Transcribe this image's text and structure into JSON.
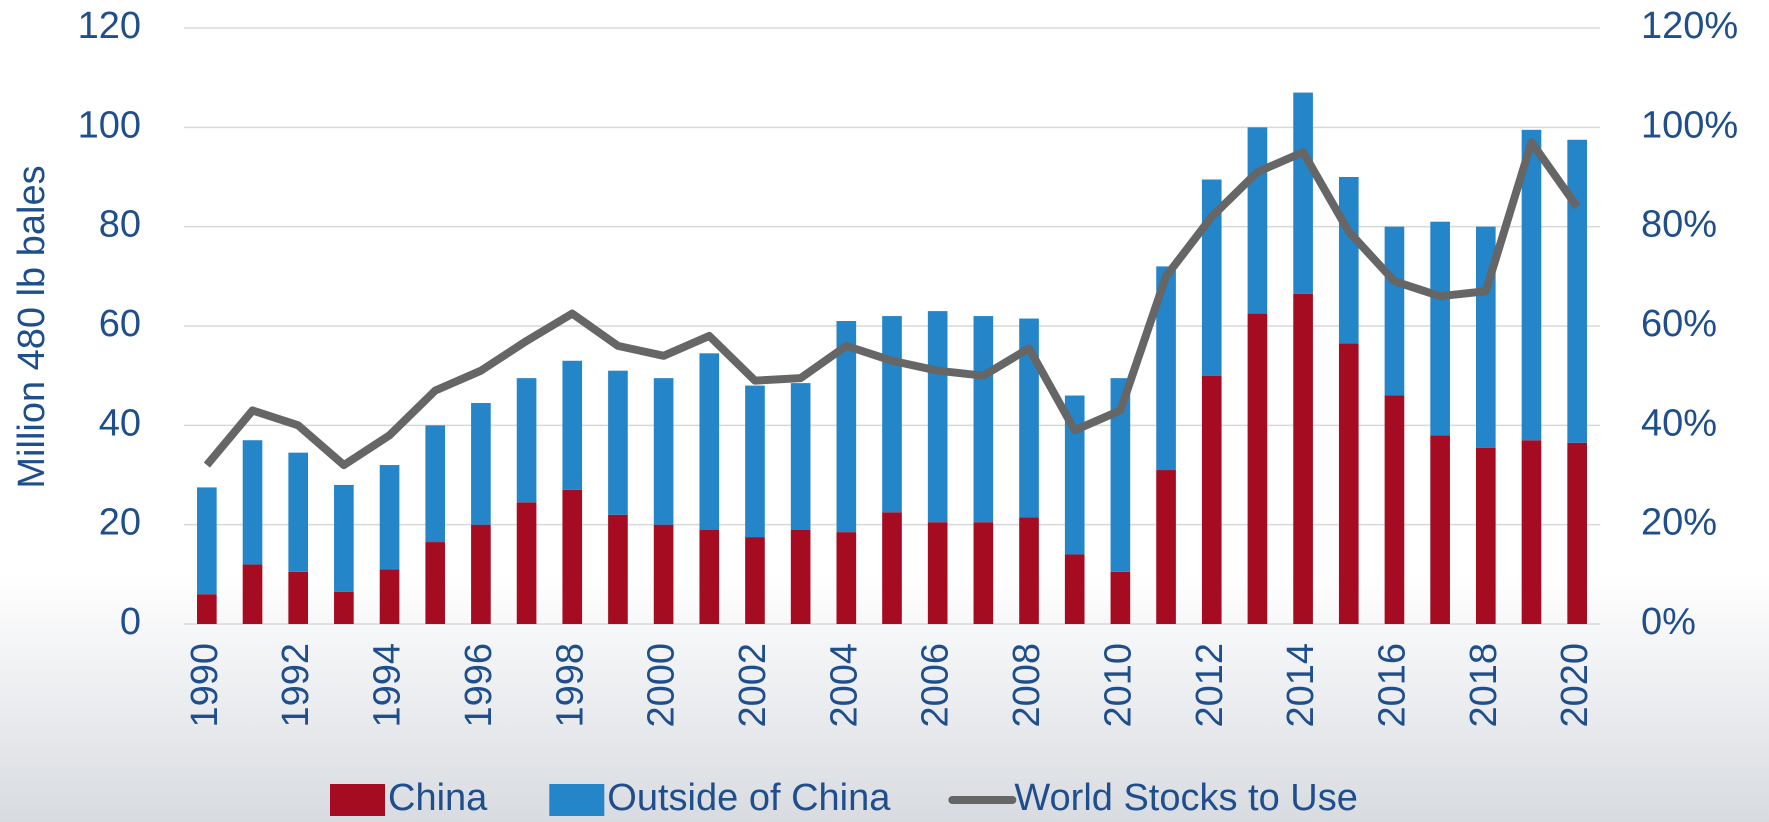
{
  "chart_data": {
    "type": "bar",
    "stacked": true,
    "y_label": "Million 480 lb bales",
    "categories": [
      "1990",
      null,
      "1992",
      null,
      "1994",
      null,
      "1996",
      null,
      "1998",
      null,
      "2000",
      null,
      "2002",
      null,
      "2004",
      null,
      "2006",
      null,
      "2008",
      null,
      "2010",
      null,
      "2012",
      null,
      "2014",
      null,
      "2016",
      null,
      "2018",
      null,
      "2020"
    ],
    "series": [
      {
        "name": "China",
        "color": "#a50b21",
        "values": [
          6,
          12,
          10.5,
          6.5,
          11,
          16.5,
          20,
          24.5,
          27,
          22,
          20,
          19,
          17.5,
          19,
          18.5,
          22.5,
          20.5,
          20.5,
          21.5,
          14,
          10.5,
          31,
          50,
          62.5,
          66.5,
          56.5,
          46,
          38,
          35.5,
          37,
          36.5
        ]
      },
      {
        "name": "Outside of China",
        "color": "#2485c8",
        "values": [
          21.5,
          25,
          24,
          21.5,
          21,
          23.5,
          24.5,
          25,
          26,
          29,
          29.5,
          35.5,
          30.5,
          29.5,
          42.5,
          39.5,
          42.5,
          41.5,
          40,
          32,
          39,
          41,
          39.5,
          37.5,
          40.5,
          33.5,
          34,
          43,
          44.5,
          62.5,
          61
        ]
      },
      {
        "name": "World Stocks to Use",
        "type": "line",
        "axis": "y2",
        "color": "#666666",
        "values": [
          32,
          43,
          40,
          32,
          38,
          47,
          51,
          57,
          62.5,
          56,
          54,
          58,
          49,
          49.5,
          56,
          53,
          51,
          50,
          55.5,
          39,
          43,
          70,
          82,
          91,
          95,
          79,
          69,
          66,
          67,
          97,
          84
        ]
      }
    ],
    "ylim": [
      0,
      120
    ],
    "yticks": [
      0,
      20,
      40,
      60,
      80,
      100,
      120
    ],
    "y2lim": [
      0,
      120
    ],
    "y2ticks": [
      {
        "value": 0,
        "label": "0%"
      },
      {
        "value": 20,
        "label": "20%"
      },
      {
        "value": 40,
        "label": "40%"
      },
      {
        "value": 60,
        "label": "60%"
      },
      {
        "value": 80,
        "label": "80%"
      },
      {
        "value": 100,
        "label": "100%"
      },
      {
        "value": 120,
        "label": "120%"
      }
    ],
    "grid": true
  }
}
